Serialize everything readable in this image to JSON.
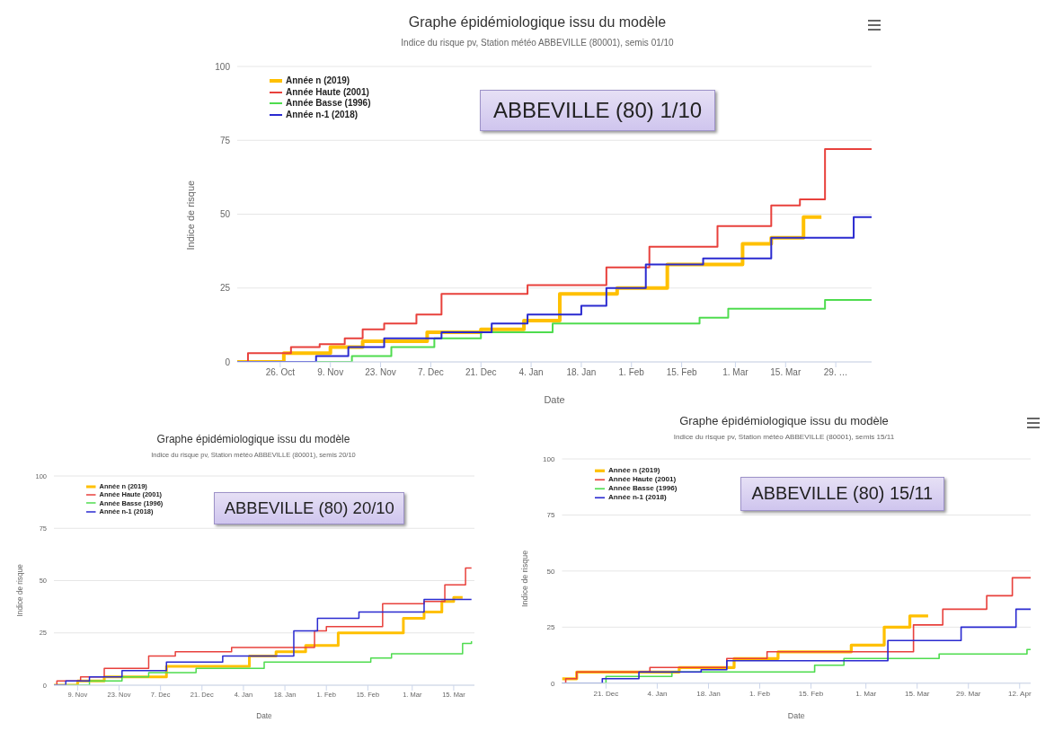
{
  "chart_data": [
    {
      "type": "step",
      "title": "Graphe épidémiologique issu du modèle",
      "subtitle": "Indice du risque pv, Station météo ABBEVILLE (80001), semis 01/10",
      "xlabel": "Date",
      "ylabel": "Indice de risque",
      "annotations": [
        "ABBEVILLE (80) 1/10"
      ],
      "xlim": [
        "2019-10-14",
        "2020-04-08"
      ],
      "xticks": [
        {
          "value": "2019-10-26",
          "label": "26. Oct"
        },
        {
          "value": "2019-11-09",
          "label": "9. Nov"
        },
        {
          "value": "2019-11-23",
          "label": "23. Nov"
        },
        {
          "value": "2019-12-07",
          "label": "7. Dec"
        },
        {
          "value": "2019-12-21",
          "label": "21. Dec"
        },
        {
          "value": "2020-01-04",
          "label": "4. Jan"
        },
        {
          "value": "2020-01-18",
          "label": "18. Jan"
        },
        {
          "value": "2020-02-01",
          "label": "1. Feb"
        },
        {
          "value": "2020-02-15",
          "label": "15. Feb"
        },
        {
          "value": "2020-03-01",
          "label": "1. Mar"
        },
        {
          "value": "2020-03-15",
          "label": "15. Mar"
        },
        {
          "value": "2020-03-29",
          "label": "29. …"
        }
      ],
      "ylim": [
        0,
        100
      ],
      "yticks": [
        0,
        25,
        50,
        75,
        100
      ],
      "grid": "y",
      "legend": "top left",
      "series": [
        {
          "name": "Année n (2019)",
          "color": "#ffc000",
          "x": [
            "2019-10-14",
            "2019-10-27",
            "2019-11-09",
            "2019-11-18",
            "2019-12-06",
            "2019-12-21",
            "2020-01-02",
            "2020-01-12",
            "2020-01-28",
            "2020-02-11",
            "2020-03-03",
            "2020-03-11",
            "2020-03-20",
            "2020-03-25"
          ],
          "values": [
            0,
            3,
            5,
            7,
            10,
            11,
            14,
            23,
            25,
            33,
            40,
            42,
            49,
            49
          ]
        },
        {
          "name": "Année Haute (2001)",
          "color": "#e8413c",
          "x": [
            "2019-10-14",
            "2019-10-17",
            "2019-10-29",
            "2019-11-06",
            "2019-11-13",
            "2019-11-18",
            "2019-11-24",
            "2019-12-03",
            "2019-12-10",
            "2020-01-03",
            "2020-01-25",
            "2020-02-06",
            "2020-02-25",
            "2020-03-11",
            "2020-03-19",
            "2020-03-26",
            "2020-04-08"
          ],
          "values": [
            0,
            3,
            5,
            6,
            8,
            11,
            13,
            16,
            23,
            26,
            32,
            39,
            46,
            53,
            55,
            72,
            72
          ]
        },
        {
          "name": "Année Basse (1996)",
          "color": "#4fdc4f",
          "x": [
            "2019-10-14",
            "2019-11-15",
            "2019-11-26",
            "2019-12-08",
            "2019-12-21",
            "2020-01-10",
            "2020-02-20",
            "2020-02-28",
            "2020-03-26",
            "2020-04-08"
          ],
          "values": [
            0,
            2,
            5,
            8,
            10,
            13,
            15,
            18,
            21,
            21
          ]
        },
        {
          "name": "Année n-1 (2018)",
          "color": "#2a2ad0",
          "x": [
            "2019-10-14",
            "2019-11-05",
            "2019-11-14",
            "2019-11-24",
            "2019-12-10",
            "2019-12-24",
            "2020-01-03",
            "2020-01-18",
            "2020-01-25",
            "2020-02-05",
            "2020-02-21",
            "2020-03-11",
            "2020-04-03",
            "2020-04-08"
          ],
          "values": [
            0,
            2,
            5,
            8,
            10,
            13,
            16,
            19,
            25,
            33,
            35,
            42,
            49,
            49
          ]
        }
      ]
    },
    {
      "type": "step",
      "title": "Graphe épidémiologique issu du modèle",
      "subtitle": "Indice du risque pv, Station météo ABBEVILLE (80001), semis 20/10",
      "xlabel": "Date",
      "ylabel": "Indice de risque",
      "annotations": [
        "ABBEVILLE (80) 20/10"
      ],
      "xlim": [
        "2019-11-01",
        "2020-03-22"
      ],
      "xticks": [
        {
          "value": "2019-11-09",
          "label": "9. Nov"
        },
        {
          "value": "2019-11-23",
          "label": "23. Nov"
        },
        {
          "value": "2019-12-07",
          "label": "7. Dec"
        },
        {
          "value": "2019-12-21",
          "label": "21. Dec"
        },
        {
          "value": "2020-01-04",
          "label": "4. Jan"
        },
        {
          "value": "2020-01-18",
          "label": "18. Jan"
        },
        {
          "value": "2020-02-01",
          "label": "1. Feb"
        },
        {
          "value": "2020-02-15",
          "label": "15. Feb"
        },
        {
          "value": "2020-03-01",
          "label": "1. Mar"
        },
        {
          "value": "2020-03-15",
          "label": "15. Mar"
        }
      ],
      "ylim": [
        0,
        100
      ],
      "yticks": [
        0,
        25,
        50,
        75,
        100
      ],
      "grid": "y",
      "legend": "top left",
      "series": [
        {
          "name": "Année n (2019)",
          "color": "#ffc000",
          "x": [
            "2019-11-01",
            "2019-11-09",
            "2019-11-18",
            "2019-12-09",
            "2020-01-06",
            "2020-01-15",
            "2020-01-25",
            "2020-02-05",
            "2020-02-27",
            "2020-03-05",
            "2020-03-11",
            "2020-03-15",
            "2020-03-18"
          ],
          "values": [
            0,
            2,
            4,
            9,
            14,
            16,
            19,
            25,
            32,
            35,
            40,
            42,
            42
          ]
        },
        {
          "name": "Année Haute (2001)",
          "color": "#e8413c",
          "x": [
            "2019-11-01",
            "2019-11-02",
            "2019-11-10",
            "2019-11-18",
            "2019-12-03",
            "2019-12-12",
            "2019-12-31",
            "2020-01-28",
            "2020-02-01",
            "2020-02-20",
            "2020-03-05",
            "2020-03-12",
            "2020-03-19",
            "2020-03-21"
          ],
          "values": [
            0,
            2,
            4,
            8,
            14,
            16,
            18,
            26,
            28,
            39,
            40,
            48,
            56,
            56
          ]
        },
        {
          "name": "Année Basse (1996)",
          "color": "#4fdc4f",
          "x": [
            "2019-11-01",
            "2019-11-13",
            "2019-11-24",
            "2019-12-03",
            "2019-12-19",
            "2020-01-11",
            "2020-02-16",
            "2020-02-23",
            "2020-03-18",
            "2020-03-21"
          ],
          "values": [
            0,
            2,
            4,
            6,
            8,
            11,
            13,
            15,
            20,
            21
          ]
        },
        {
          "name": "Année n-1 (2018)",
          "color": "#2a2ad0",
          "x": [
            "2019-11-01",
            "2019-11-05",
            "2019-11-13",
            "2019-11-24",
            "2019-12-09",
            "2019-12-28",
            "2020-01-21",
            "2020-01-29",
            "2020-02-12",
            "2020-03-05",
            "2020-03-21"
          ],
          "values": [
            0,
            2,
            4,
            7,
            11,
            14,
            26,
            32,
            35,
            41,
            41
          ]
        }
      ]
    },
    {
      "type": "step",
      "title": "Graphe épidémiologique issu du modèle",
      "subtitle": "Indice du risque pv, Station météo ABBEVILLE (80001), semis 15/11",
      "xlabel": "Date",
      "ylabel": "Indice de risque",
      "annotations": [
        "ABBEVILLE (80) 15/11"
      ],
      "xlim": [
        "2019-12-09",
        "2020-04-15"
      ],
      "xticks": [
        {
          "value": "2019-12-21",
          "label": "21. Dec"
        },
        {
          "value": "2020-01-04",
          "label": "4. Jan"
        },
        {
          "value": "2020-01-18",
          "label": "18. Jan"
        },
        {
          "value": "2020-02-01",
          "label": "1. Feb"
        },
        {
          "value": "2020-02-15",
          "label": "15. Feb"
        },
        {
          "value": "2020-03-01",
          "label": "1. Mar"
        },
        {
          "value": "2020-03-15",
          "label": "15. Mar"
        },
        {
          "value": "2020-03-29",
          "label": "29. Mar"
        },
        {
          "value": "2020-04-12",
          "label": "12. Apr"
        }
      ],
      "ylim": [
        0,
        100
      ],
      "yticks": [
        0,
        25,
        50,
        75,
        100
      ],
      "grid": "y",
      "legend": "top left",
      "series": [
        {
          "name": "Année n (2019)",
          "color": "#ffc000",
          "x": [
            "2019-12-09",
            "2019-12-13",
            "2020-01-10",
            "2020-01-25",
            "2020-02-06",
            "2020-02-26",
            "2020-03-06",
            "2020-03-13",
            "2020-03-18"
          ],
          "values": [
            2,
            5,
            7,
            11,
            14,
            17,
            25,
            30,
            30
          ]
        },
        {
          "name": "Année Haute (2001)",
          "color": "#e8413c",
          "x": [
            "2019-12-09",
            "2019-12-10",
            "2019-12-13",
            "2020-01-02",
            "2020-01-23",
            "2020-02-03",
            "2020-03-14",
            "2020-03-22",
            "2020-04-03",
            "2020-04-10",
            "2020-04-15"
          ],
          "values": [
            0,
            2,
            5,
            7,
            11,
            14,
            26,
            33,
            39,
            47,
            47
          ]
        },
        {
          "name": "Année Basse (1996)",
          "color": "#4fdc4f",
          "x": [
            "2019-12-09",
            "2019-12-21",
            "2020-01-08",
            "2020-02-16",
            "2020-02-24",
            "2020-03-21",
            "2020-04-14",
            "2020-04-15"
          ],
          "values": [
            0,
            3,
            5,
            8,
            11,
            13,
            15,
            15
          ]
        },
        {
          "name": "Année n-1 (2018)",
          "color": "#2a2ad0",
          "x": [
            "2019-12-09",
            "2019-12-20",
            "2019-12-30",
            "2020-01-16",
            "2020-01-23",
            "2020-03-07",
            "2020-03-27",
            "2020-04-11",
            "2020-04-15"
          ],
          "values": [
            0,
            2,
            5,
            6,
            10,
            19,
            25,
            33,
            33
          ]
        }
      ]
    }
  ]
}
